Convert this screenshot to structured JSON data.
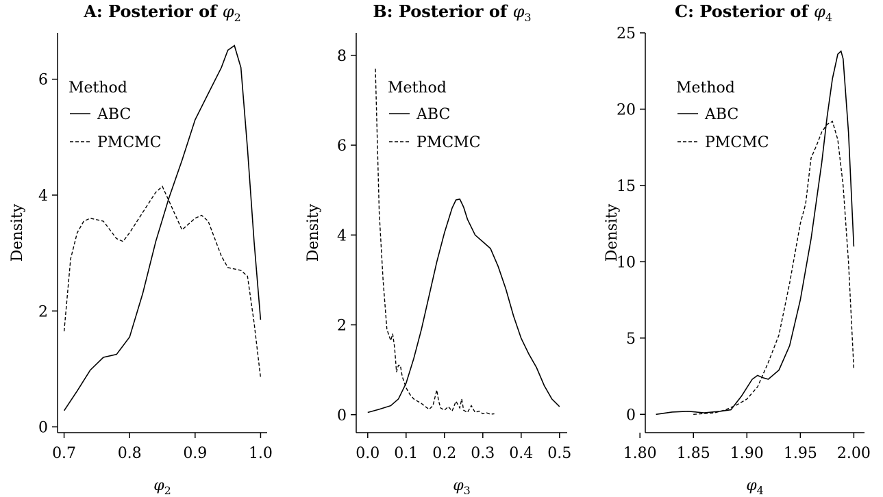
{
  "legend": {
    "title": "Method"
  },
  "chart_data": [
    {
      "type": "line",
      "title_prefix": "A: Posterior of ",
      "title_symbol": "φ",
      "title_sub": "2",
      "xlabel_symbol": "φ",
      "xlabel_sub": "2",
      "ylabel": "Density",
      "xlim": [
        0.69,
        1.01
      ],
      "ylim": [
        -0.1,
        6.8
      ],
      "xticks": [
        0.7,
        0.8,
        0.9,
        1.0
      ],
      "xtick_labels": [
        "0.7",
        "0.8",
        "0.9",
        "1.0"
      ],
      "yticks": [
        0,
        2,
        4,
        6
      ],
      "ytick_labels": [
        "0",
        "2",
        "4",
        "6"
      ],
      "legend_position": "top-left",
      "series": [
        {
          "name": "ABC",
          "style": "solid",
          "x": [
            0.7,
            0.72,
            0.74,
            0.76,
            0.78,
            0.8,
            0.82,
            0.84,
            0.86,
            0.88,
            0.9,
            0.92,
            0.94,
            0.95,
            0.96,
            0.97,
            0.98,
            0.99,
            1.0
          ],
          "y": [
            0.28,
            0.62,
            0.98,
            1.2,
            1.25,
            1.55,
            2.3,
            3.2,
            3.95,
            4.6,
            5.3,
            5.75,
            6.2,
            6.5,
            6.58,
            6.2,
            4.8,
            3.2,
            1.85
          ]
        },
        {
          "name": "PMCMC",
          "style": "dashed",
          "x": [
            0.7,
            0.71,
            0.72,
            0.73,
            0.74,
            0.76,
            0.78,
            0.79,
            0.8,
            0.82,
            0.84,
            0.85,
            0.86,
            0.88,
            0.9,
            0.91,
            0.92,
            0.94,
            0.95,
            0.97,
            0.98,
            0.99,
            1.0
          ],
          "y": [
            1.65,
            2.9,
            3.35,
            3.55,
            3.6,
            3.55,
            3.25,
            3.2,
            3.35,
            3.7,
            4.05,
            4.15,
            3.9,
            3.4,
            3.6,
            3.65,
            3.55,
            2.95,
            2.75,
            2.7,
            2.6,
            1.8,
            0.85
          ]
        }
      ]
    },
    {
      "type": "line",
      "title_prefix": "B: Posterior of ",
      "title_symbol": "φ",
      "title_sub": "3",
      "xlabel_symbol": "φ",
      "xlabel_sub": "3",
      "ylabel": "Density",
      "xlim": [
        -0.03,
        0.52
      ],
      "ylim": [
        -0.4,
        8.5
      ],
      "xticks": [
        0.0,
        0.1,
        0.2,
        0.3,
        0.4,
        0.5
      ],
      "xtick_labels": [
        "0.0",
        "0.1",
        "0.2",
        "0.3",
        "0.4",
        "0.5"
      ],
      "yticks": [
        0,
        2,
        4,
        6,
        8
      ],
      "ytick_labels": [
        "0",
        "2",
        "4",
        "6",
        "8"
      ],
      "legend_position": "top-center",
      "series": [
        {
          "name": "ABC",
          "style": "solid",
          "x": [
            0.0,
            0.03,
            0.06,
            0.08,
            0.1,
            0.12,
            0.14,
            0.16,
            0.18,
            0.2,
            0.22,
            0.23,
            0.24,
            0.25,
            0.26,
            0.28,
            0.3,
            0.32,
            0.34,
            0.36,
            0.38,
            0.4,
            0.42,
            0.44,
            0.46,
            0.48,
            0.5
          ],
          "y": [
            0.05,
            0.12,
            0.2,
            0.35,
            0.7,
            1.25,
            1.9,
            2.65,
            3.4,
            4.05,
            4.6,
            4.78,
            4.8,
            4.62,
            4.35,
            4.0,
            3.85,
            3.7,
            3.3,
            2.8,
            2.2,
            1.7,
            1.35,
            1.05,
            0.65,
            0.35,
            0.18
          ]
        },
        {
          "name": "PMCMC",
          "style": "dashed",
          "x": [
            0.02,
            0.03,
            0.04,
            0.05,
            0.06,
            0.065,
            0.07,
            0.075,
            0.08,
            0.085,
            0.09,
            0.1,
            0.11,
            0.12,
            0.13,
            0.14,
            0.15,
            0.16,
            0.17,
            0.18,
            0.185,
            0.19,
            0.2,
            0.21,
            0.22,
            0.23,
            0.24,
            0.245,
            0.25,
            0.26,
            0.27,
            0.28,
            0.29,
            0.3,
            0.31,
            0.32,
            0.33
          ],
          "y": [
            7.7,
            4.5,
            3.0,
            1.9,
            1.65,
            1.8,
            1.5,
            0.95,
            1.1,
            1.1,
            0.85,
            0.6,
            0.45,
            0.35,
            0.3,
            0.25,
            0.18,
            0.12,
            0.2,
            0.55,
            0.3,
            0.15,
            0.1,
            0.18,
            0.08,
            0.3,
            0.15,
            0.35,
            0.1,
            0.05,
            0.2,
            0.05,
            0.08,
            0.02,
            0.04,
            0.01,
            0.02
          ]
        }
      ]
    },
    {
      "type": "line",
      "title_prefix": "C: Posterior of ",
      "title_symbol": "φ",
      "title_sub": "4",
      "xlabel_symbol": "φ",
      "xlabel_sub": "4",
      "ylabel": "Density",
      "xlim": [
        1.805,
        2.01
      ],
      "ylim": [
        -1.2,
        25
      ],
      "xticks": [
        1.8,
        1.85,
        1.9,
        1.95,
        2.0
      ],
      "xtick_labels": [
        "1.80",
        "1.85",
        "1.90",
        "1.95",
        "2.00"
      ],
      "yticks": [
        0,
        5,
        10,
        15,
        20,
        25
      ],
      "ytick_labels": [
        "0",
        "5",
        "10",
        "15",
        "20",
        "25"
      ],
      "legend_position": "top-left",
      "series": [
        {
          "name": "ABC",
          "style": "solid",
          "x": [
            1.815,
            1.83,
            1.845,
            1.86,
            1.875,
            1.885,
            1.895,
            1.905,
            1.91,
            1.915,
            1.92,
            1.93,
            1.94,
            1.95,
            1.96,
            1.97,
            1.975,
            1.98,
            1.985,
            1.988,
            1.99,
            1.995,
            2.0
          ],
          "y": [
            0.0,
            0.15,
            0.2,
            0.1,
            0.2,
            0.3,
            1.2,
            2.3,
            2.55,
            2.4,
            2.3,
            2.9,
            4.5,
            7.5,
            11.5,
            16.5,
            19.5,
            22.0,
            23.6,
            23.8,
            23.3,
            18.5,
            11.0
          ]
        },
        {
          "name": "PMCMC",
          "style": "dashed",
          "x": [
            1.85,
            1.86,
            1.87,
            1.88,
            1.89,
            1.9,
            1.91,
            1.92,
            1.93,
            1.94,
            1.95,
            1.955,
            1.96,
            1.965,
            1.97,
            1.975,
            1.98,
            1.985,
            1.99,
            1.995,
            2.0
          ],
          "y": [
            0.0,
            0.05,
            0.1,
            0.3,
            0.6,
            1.0,
            1.8,
            3.4,
            5.2,
            8.6,
            12.5,
            13.8,
            16.8,
            17.6,
            18.5,
            19.0,
            19.2,
            18.0,
            15.0,
            10.0,
            3.0
          ]
        }
      ]
    }
  ]
}
